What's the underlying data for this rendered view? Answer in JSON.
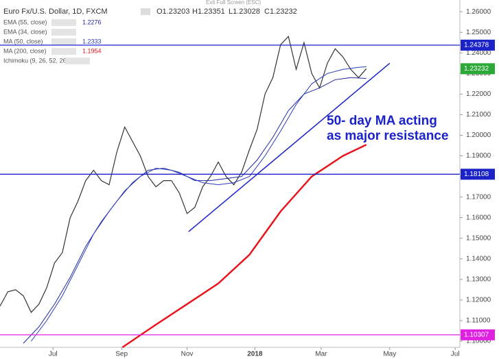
{
  "chart_data": {
    "type": "line",
    "title": "Euro Fx/U.S. Dollar, 1D, FXCM",
    "ohlc": [
      "O1.23203",
      "H1.23351",
      "L1.23028",
      "C1.23232"
    ],
    "fullscreen_hint": "Exit Full Screen (ESC)",
    "legend": [
      {
        "name": "EMA (55, close)",
        "value": 1.2276
      },
      {
        "name": "EMA (34, close)"
      },
      {
        "name": "MA (50, close)",
        "value": 1.2333
      },
      {
        "name": "MA (200, close)",
        "value": 1.1954
      },
      {
        "name": "Ichimoku (9, 26, 52, 26)"
      }
    ],
    "xlim": [
      0,
      59
    ],
    "xticks": [
      {
        "value": 6.8,
        "label": "Jul"
      },
      {
        "value": 15.6,
        "label": "Sep"
      },
      {
        "value": 24,
        "label": "Nov"
      },
      {
        "value": 32.7,
        "label": "2018"
      },
      {
        "value": 41.2,
        "label": "Mar"
      },
      {
        "value": 50,
        "label": "May"
      },
      {
        "value": 58.4,
        "label": "Jul"
      }
    ],
    "ylim": [
      1.097,
      1.2657
    ],
    "yticks": [
      {
        "value": 1.1,
        "label": "1.10000"
      },
      {
        "value": 1.11,
        "label": "1.11000"
      },
      {
        "value": 1.12,
        "label": "1.12000"
      },
      {
        "value": 1.13,
        "label": "1.13000"
      },
      {
        "value": 1.14,
        "label": "1.14000"
      },
      {
        "value": 1.15,
        "label": "1.15000"
      },
      {
        "value": 1.16,
        "label": "1.16000"
      },
      {
        "value": 1.17,
        "label": "1.17000"
      },
      {
        "value": 1.18,
        "label": "1.18000"
      },
      {
        "value": 1.19,
        "label": "1.19000"
      },
      {
        "value": 1.2,
        "label": "1.20000"
      },
      {
        "value": 1.21,
        "label": "1.21000"
      },
      {
        "value": 1.22,
        "label": "1.22000"
      },
      {
        "value": 1.23,
        "label": "1.23000"
      },
      {
        "value": 1.24,
        "label": "1.24000"
      },
      {
        "value": 1.25,
        "label": "1.25000"
      },
      {
        "value": 1.26,
        "label": "1.26000"
      }
    ],
    "series": [
      {
        "color": "#333333",
        "width": 1.2,
        "x": [
          0,
          1,
          2,
          3,
          4,
          5,
          6,
          7,
          8,
          9,
          10,
          11,
          12,
          13,
          14,
          15,
          16,
          17,
          18,
          19,
          20,
          21,
          22,
          23,
          24,
          25,
          26,
          27,
          28,
          29,
          30,
          31,
          32,
          33,
          34,
          35,
          36,
          37,
          38,
          39,
          40,
          41,
          42,
          43,
          44,
          45,
          46,
          47
        ],
        "values": [
          1.117,
          1.124,
          1.125,
          1.122,
          1.114,
          1.118,
          1.126,
          1.138,
          1.143,
          1.16,
          1.168,
          1.178,
          1.183,
          1.178,
          1.176,
          1.192,
          1.204,
          1.197,
          1.19,
          1.18,
          1.175,
          1.178,
          1.178,
          1.172,
          1.162,
          1.165,
          1.175,
          1.18,
          1.187,
          1.18,
          1.176,
          1.182,
          1.193,
          1.203,
          1.22,
          1.228,
          1.244,
          1.248,
          1.232,
          1.245,
          1.23,
          1.223,
          1.235,
          1.242,
          1.238,
          1.232,
          1.228,
          1.23232
        ]
      },
      {
        "color": "#1f2a9e",
        "width": 1,
        "x": [
          3,
          5,
          7,
          9,
          11,
          13,
          15,
          17,
          19,
          21,
          23,
          25,
          27,
          29,
          31,
          33,
          35,
          37,
          39,
          41,
          43,
          45,
          47
        ],
        "values": [
          1.099,
          1.107,
          1.118,
          1.131,
          1.146,
          1.158,
          1.168,
          1.177,
          1.183,
          1.184,
          1.182,
          1.178,
          1.178,
          1.179,
          1.18,
          1.188,
          1.199,
          1.212,
          1.22,
          1.223,
          1.227,
          1.228,
          1.2276
        ]
      },
      {
        "color": "#2a3ac0",
        "width": 1,
        "x": [
          4,
          6,
          8,
          10,
          12,
          14,
          16,
          18,
          20,
          22,
          24,
          26,
          28,
          30,
          32,
          34,
          36,
          38,
          40,
          42,
          44,
          46,
          47
        ],
        "values": [
          1.1,
          1.11,
          1.122,
          1.137,
          1.152,
          1.163,
          1.173,
          1.18,
          1.184,
          1.183,
          1.18,
          1.177,
          1.176,
          1.177,
          1.18,
          1.19,
          1.202,
          1.215,
          1.225,
          1.23,
          1.232,
          1.233,
          1.2333
        ]
      },
      {
        "color": "#e8141c",
        "width": 2.5,
        "x": [
          15.7,
          20,
          24,
          28,
          32,
          36,
          40,
          44,
          47
        ],
        "values": [
          1.097,
          1.108,
          1.118,
          1.128,
          1.142,
          1.163,
          1.18,
          1.19,
          1.1954
        ]
      }
    ],
    "levels": [
      {
        "value": 1.24378,
        "color": "#1a22c8"
      },
      {
        "value": 1.18108,
        "color": "#1a22c8"
      },
      {
        "value": 1.10307,
        "color": "#e020e0"
      }
    ],
    "last_price": {
      "value": 1.23232,
      "color": "#2aa838"
    },
    "trendline": {
      "x": [
        24.2,
        50.0
      ],
      "values": [
        1.1532,
        1.235
      ],
      "color": "#1a22c8"
    },
    "annotation": [
      "50- day MA acting",
      "as major resistance"
    ]
  }
}
